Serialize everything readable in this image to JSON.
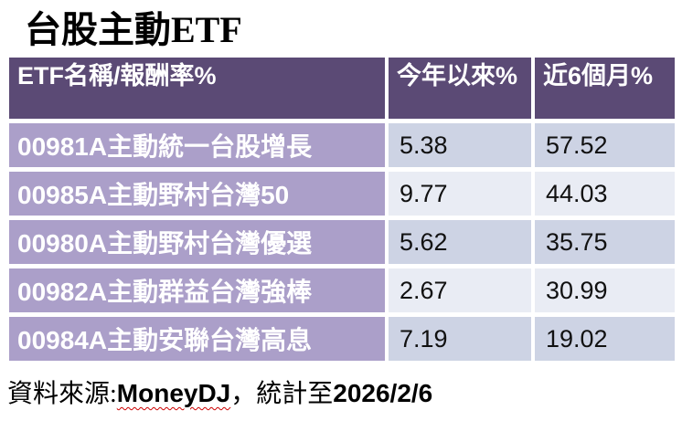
{
  "title": "台股主動ETF",
  "table": {
    "header": {
      "name": "ETF名稱/報酬率%",
      "ytd": "今年以來%",
      "six_month": "近6個月%"
    },
    "rows": [
      {
        "name": "00981A主動統一台股增長",
        "ytd": "5.38",
        "six_month": "57.52"
      },
      {
        "name": "00985A主動野村台灣50",
        "ytd": "9.77",
        "six_month": "44.03"
      },
      {
        "name": "00980A主動野村台灣優選",
        "ytd": "5.62",
        "six_month": "35.75"
      },
      {
        "name": "00982A主動群益台灣強棒",
        "ytd": "2.67",
        "six_month": "30.99"
      },
      {
        "name": "00984A主動安聯台灣高息",
        "ytd": "7.19",
        "six_month": "19.02"
      }
    ]
  },
  "footer": {
    "label": "資料來源:",
    "source": "MoneyDJ",
    "separator": "，統計至",
    "date": "2026/2/6"
  },
  "colors": {
    "header_bg": "#5b4a75",
    "name_cell_bg": "#ab9fc9",
    "value_row_odd_bg": "#cdd3e4",
    "value_row_even_bg": "#e9ecf4",
    "header_text": "#ffffff",
    "name_text": "#ffffff",
    "value_text": "#111111",
    "spellcheck_underline": "#cc0000"
  },
  "chart_data": {
    "type": "table",
    "title": "台股主動ETF",
    "columns": [
      "ETF名稱/報酬率%",
      "今年以來%",
      "近6個月%"
    ],
    "rows": [
      [
        "00981A主動統一台股增長",
        5.38,
        57.52
      ],
      [
        "00985A主動野村台灣50",
        9.77,
        44.03
      ],
      [
        "00980A主動野村台灣優選",
        5.62,
        35.75
      ],
      [
        "00982A主動群益台灣強棒",
        2.67,
        30.99
      ],
      [
        "00984A主動安聯台灣高息",
        7.19,
        19.02
      ]
    ],
    "source_note": "資料來源:MoneyDJ，統計至2026/2/6",
    "layout": {
      "sort_order": "near-6-month descending",
      "header_style": "dark purple band, white bold text",
      "name_column_style": "light purple band, white bold text",
      "value_columns_style": "alternating light blue-gray rows"
    }
  }
}
